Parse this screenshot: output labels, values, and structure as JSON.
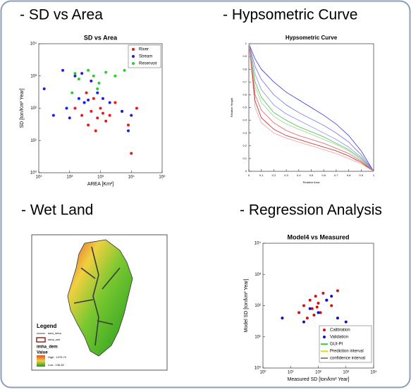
{
  "headings": [
    "- SD vs Area",
    "- Hypsometric Curve",
    "- Wet Land",
    "- Regression Analysis"
  ],
  "chart_data": [
    {
      "type": "scatter",
      "title": "SD vs Area",
      "xlabel": "AREA [Km²]",
      "ylabel": "SD [ton/Km² Year]",
      "log": true,
      "xlim": [
        10,
        100000
      ],
      "ylim": [
        1,
        10000
      ],
      "xticks": [
        {
          "value": 10,
          "label": "10¹"
        },
        {
          "value": 100,
          "label": "10²"
        },
        {
          "value": 1000,
          "label": "10³"
        },
        {
          "value": 10000,
          "label": "10⁴"
        },
        {
          "value": 100000,
          "label": "10⁵"
        }
      ],
      "yticks": [
        {
          "value": 1,
          "label": "10⁰"
        },
        {
          "value": 10,
          "label": "10¹"
        },
        {
          "value": 100,
          "label": "10²"
        },
        {
          "value": 1000,
          "label": "10³"
        },
        {
          "value": 10000,
          "label": "10⁴"
        }
      ],
      "series": [
        {
          "name": "River",
          "color": "#e41a1c",
          "x": [
            150,
            250,
            300,
            400,
            500,
            600,
            800,
            1000,
            1500,
            2000,
            3000,
            5000,
            8000,
            10000,
            15000,
            700,
            350,
            1200
          ],
          "values": [
            100,
            60,
            150,
            30,
            80,
            200,
            50,
            100,
            40,
            60,
            150,
            80,
            30,
            4,
            100,
            20,
            300,
            70
          ]
        },
        {
          "name": "Stream",
          "color": "#1f1fd6",
          "x": [
            15,
            30,
            60,
            80,
            100,
            150,
            200,
            300,
            500,
            800,
            1200,
            2000,
            5000,
            8000,
            10000,
            400,
            250
          ],
          "values": [
            400,
            60,
            1500,
            100,
            50,
            1000,
            200,
            150,
            700,
            300,
            200,
            150,
            80,
            20,
            60,
            180,
            1200
          ]
        },
        {
          "name": "Reservoir",
          "color": "#2ecc2e",
          "x": [
            120,
            200,
            400,
            600,
            900,
            1500,
            3000,
            6000,
            150,
            800
          ],
          "values": [
            300,
            800,
            1500,
            1000,
            600,
            1300,
            1000,
            1500,
            1200,
            400
          ]
        }
      ]
    },
    {
      "type": "line",
      "title": "Hypsometric Curve",
      "xlabel": "Relative Area",
      "ylabel": "Relative Height",
      "log": false,
      "xlim": [
        0,
        1
      ],
      "ylim": [
        0,
        1
      ],
      "xticks": [
        0,
        0.1,
        0.2,
        0.3,
        0.4,
        0.5,
        0.6,
        0.7,
        0.8,
        0.9,
        1
      ],
      "yticks": [
        0,
        0.1,
        0.2,
        0.3,
        0.4,
        0.5,
        0.6,
        0.7,
        0.8,
        0.9,
        1
      ],
      "x": [
        0,
        0.05,
        0.1,
        0.2,
        0.3,
        0.4,
        0.5,
        0.6,
        0.7,
        0.8,
        0.9,
        1
      ],
      "series": [
        {
          "color": "#3a3ad8",
          "values": [
            1,
            0.88,
            0.8,
            0.7,
            0.62,
            0.56,
            0.5,
            0.44,
            0.37,
            0.28,
            0.16,
            0
          ]
        },
        {
          "color": "#6a6ae8",
          "values": [
            1,
            0.82,
            0.72,
            0.6,
            0.52,
            0.46,
            0.41,
            0.36,
            0.3,
            0.23,
            0.13,
            0
          ]
        },
        {
          "color": "#8c8cf0",
          "values": [
            1,
            0.76,
            0.64,
            0.52,
            0.45,
            0.4,
            0.35,
            0.3,
            0.25,
            0.19,
            0.11,
            0
          ]
        },
        {
          "color": "#4bc04b",
          "values": [
            1,
            0.7,
            0.58,
            0.46,
            0.4,
            0.35,
            0.31,
            0.27,
            0.22,
            0.17,
            0.1,
            0
          ]
        },
        {
          "color": "#9ad49a",
          "values": [
            1,
            0.66,
            0.54,
            0.43,
            0.37,
            0.33,
            0.29,
            0.25,
            0.21,
            0.16,
            0.09,
            0
          ]
        },
        {
          "color": "#e06060",
          "values": [
            1,
            0.6,
            0.48,
            0.38,
            0.32,
            0.28,
            0.25,
            0.22,
            0.18,
            0.14,
            0.08,
            0
          ]
        },
        {
          "color": "#c02020",
          "values": [
            1,
            0.55,
            0.42,
            0.33,
            0.28,
            0.25,
            0.22,
            0.19,
            0.16,
            0.12,
            0.07,
            0
          ]
        },
        {
          "color": "#f0a0a0",
          "values": [
            1,
            0.5,
            0.38,
            0.3,
            0.26,
            0.23,
            0.2,
            0.17,
            0.14,
            0.1,
            0.06,
            0
          ]
        }
      ]
    },
    {
      "type": "scatter",
      "title": "Model4 vs Measured",
      "xlabel": "Measured SD [ton/km² Year]",
      "ylabel": "Model SD [ton/km² Year]",
      "log": true,
      "xlim": [
        1,
        10000
      ],
      "ylim": [
        1,
        10000
      ],
      "xticks": [
        {
          "value": 1,
          "label": "10⁰"
        },
        {
          "value": 10,
          "label": "10¹"
        },
        {
          "value": 100,
          "label": "10²"
        },
        {
          "value": 1000,
          "label": "10³"
        },
        {
          "value": 10000,
          "label": "10⁴"
        }
      ],
      "yticks": [
        {
          "value": 1,
          "label": "10⁰"
        },
        {
          "value": 10,
          "label": "10¹"
        },
        {
          "value": 100,
          "label": "10²"
        },
        {
          "value": 1000,
          "label": "10³"
        },
        {
          "value": 10000,
          "label": "10⁴"
        }
      ],
      "series": [
        {
          "name": "Calibration",
          "color": "#d01010",
          "x": [
            20,
            30,
            40,
            50,
            60,
            80,
            100,
            120,
            150,
            200,
            300,
            500,
            70,
            90
          ],
          "values": [
            60,
            100,
            40,
            150,
            80,
            200,
            120,
            60,
            250,
            150,
            100,
            300,
            50,
            90
          ]
        },
        {
          "name": "Validation",
          "color": "#1010c0",
          "x": [
            5,
            30,
            100,
            300,
            500,
            1000,
            200,
            50
          ],
          "values": [
            40,
            30,
            60,
            200,
            40,
            30,
            150,
            80
          ]
        }
      ],
      "legend_items": [
        {
          "name": "GUI-PI",
          "color": "#33dd33"
        },
        {
          "name": "Prediction interval",
          "color": "#e6e600"
        },
        {
          "name": "confidence interval",
          "color": "#888888"
        }
      ]
    }
  ],
  "map": {
    "legend": [
      "Legend",
      "dam_imha",
      "imha_wet",
      "imha_dem",
      "Value",
      "High : 1076.72",
      "Low : 136.62"
    ]
  }
}
